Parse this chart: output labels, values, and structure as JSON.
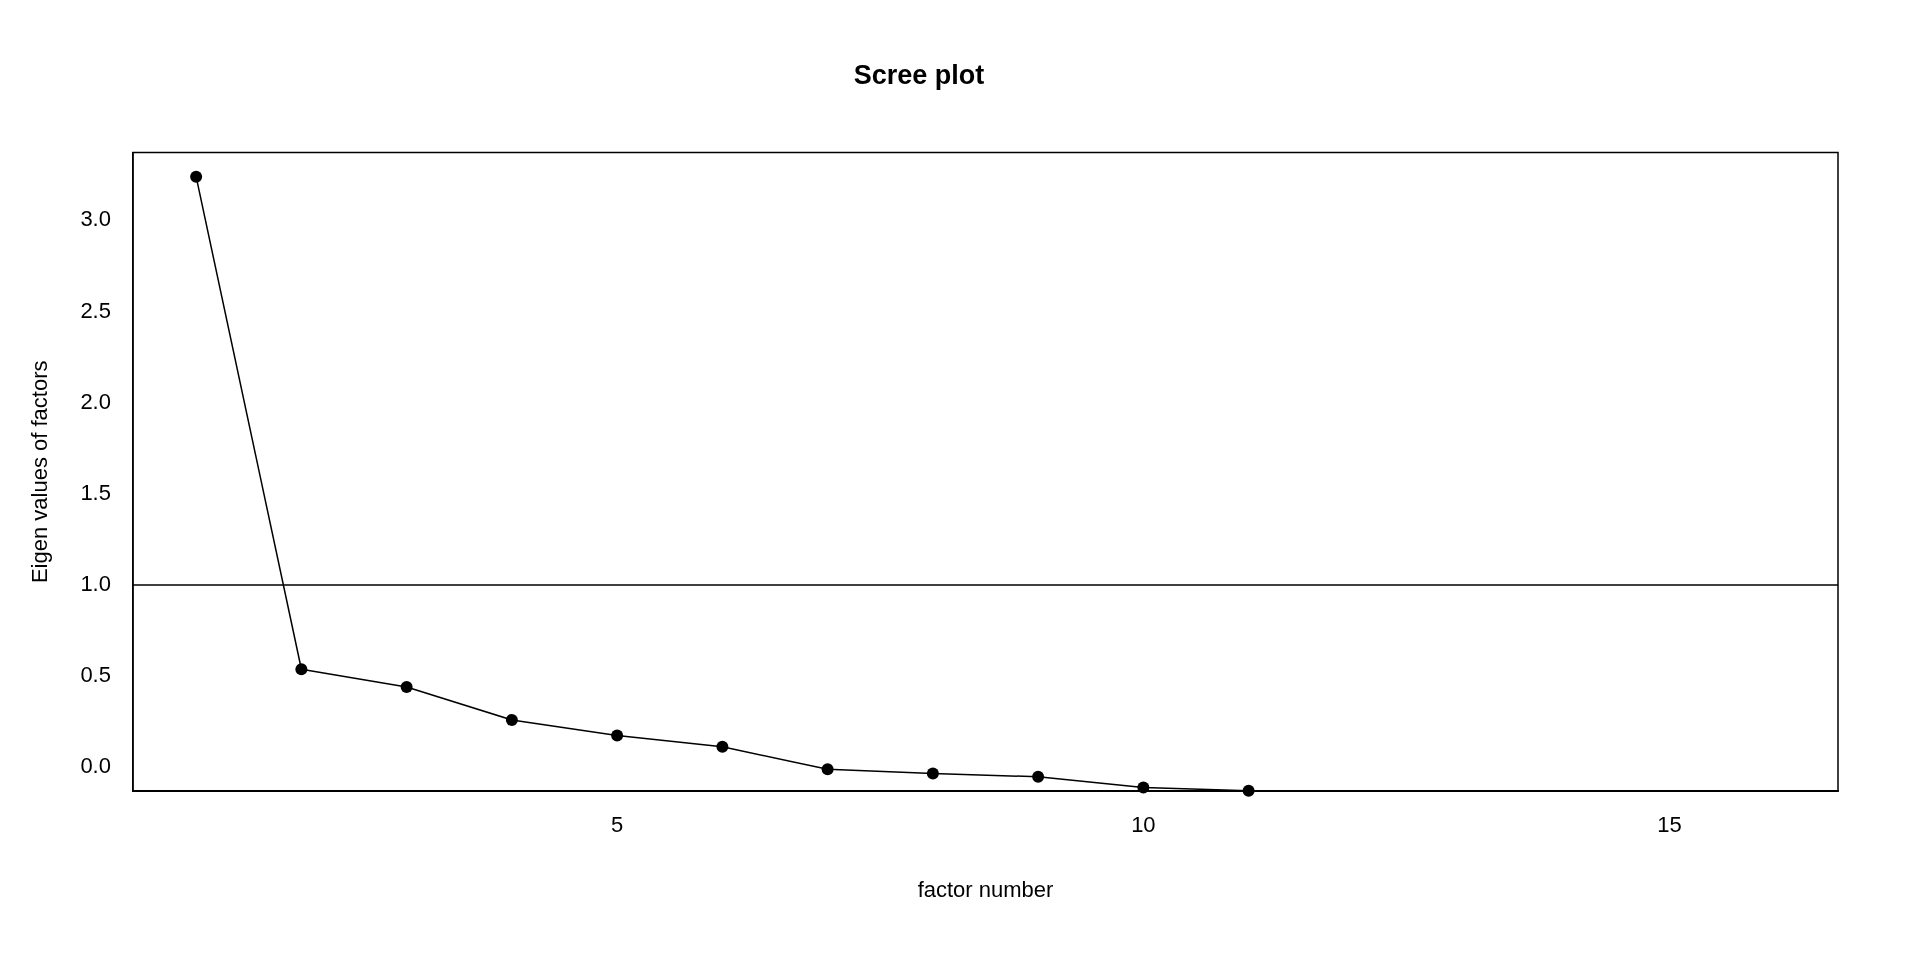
{
  "chart_data": {
    "type": "line",
    "title": "Scree plot",
    "xlabel": "factor number",
    "ylabel": "Eigen values of factors",
    "x": [
      1,
      2,
      3,
      4,
      5,
      6,
      7,
      8,
      9,
      10,
      11
    ],
    "series": [
      {
        "color": "#000000",
        "values": [
          3.24,
          0.537,
          0.44,
          0.259,
          0.174,
          0.112,
          -0.012,
          -0.035,
          -0.053,
          -0.112,
          -0.13
        ]
      }
    ],
    "xlim": [
      0.4,
      16.6
    ],
    "xticks": [
      5,
      10,
      15
    ],
    "ylim": [
      -0.132,
      3.373
    ],
    "yticks": [
      {
        "value": 0,
        "label": "0.0"
      },
      {
        "value": 0.5,
        "label": "0.5"
      },
      {
        "value": 1,
        "label": "1.0"
      },
      {
        "value": 1.5,
        "label": "1.5"
      },
      {
        "value": 2,
        "label": "2.0"
      },
      {
        "value": 2.5,
        "label": "2.5"
      },
      {
        "value": 3,
        "label": "3.0"
      }
    ],
    "ref_lines": [
      {
        "axis": "y",
        "value": 1,
        "color": "#000000"
      }
    ],
    "marker": "circle",
    "line_style": "solid",
    "grid": false,
    "legend": false
  }
}
